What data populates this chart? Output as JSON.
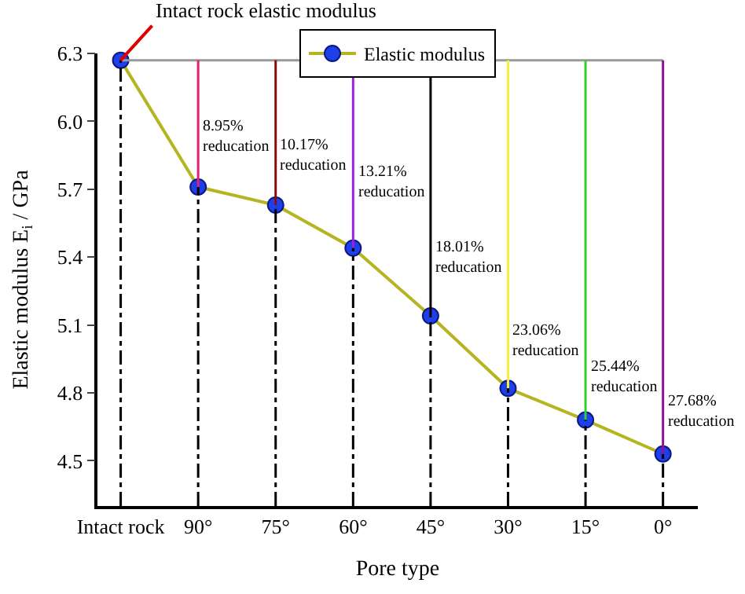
{
  "chart_data": {
    "type": "line",
    "xlabel": "Pore type",
    "ylabel": "Elastic modulus E$_{i}$ / GPa",
    "categories": [
      "Intact rock",
      "90°",
      "75°",
      "60°",
      "45°",
      "30°",
      "15°",
      "0°"
    ],
    "series": [
      {
        "name": "Elastic modulus",
        "color": "#b5b522",
        "colors": [
          "#1f3fe8",
          "#1f3fe8",
          "#1f3fe8",
          "#1f3fe8",
          "#1f3fe8",
          "#1f3fe8",
          "#1f3fe8",
          "#1f3fe8"
        ],
        "values": [
          6.27,
          5.71,
          5.63,
          5.44,
          5.14,
          4.82,
          4.68,
          4.53
        ]
      }
    ],
    "ylim": [
      4.3,
      6.3
    ],
    "yticks": [
      4.5,
      4.8,
      5.1,
      5.4,
      5.7,
      {
        "value": 6,
        "label": "6.0"
      },
      6.3
    ],
    "marker": "circle",
    "line_style": "solid",
    "legend": "top",
    "ref_lines": [
      {
        "axis": "y",
        "value": 6.27,
        "color": "#999999"
      },
      {
        "axis": "x",
        "value": "90°",
        "color": "#e0207a",
        "line_style": "solid"
      },
      {
        "axis": "x",
        "value": "75°",
        "color": "#8b0a0a",
        "line_style": "solid"
      },
      {
        "axis": "x",
        "value": "60°",
        "color": "#a020e0",
        "line_style": "solid"
      },
      {
        "axis": "x",
        "value": "45°",
        "color": "#000000",
        "line_style": "solid"
      },
      {
        "axis": "x",
        "value": "30°",
        "color": "#f5f040",
        "line_style": "solid"
      },
      {
        "axis": "x",
        "value": "15°",
        "color": "#30d030",
        "line_style": "solid"
      },
      {
        "axis": "x",
        "value": "0°",
        "color": "#9010a0",
        "line_style": "solid"
      },
      {
        "axis": "x",
        "value": "Intact rock",
        "color": "#000000",
        "line_style": "dashdot"
      },
      {
        "axis": "x",
        "value": "90°",
        "color": "#000000",
        "line_style": "dashdot"
      },
      {
        "axis": "x",
        "value": "75°",
        "color": "#000000",
        "line_style": "dashdot"
      },
      {
        "axis": "x",
        "value": "60°",
        "color": "#000000",
        "line_style": "dashdot"
      },
      {
        "axis": "x",
        "value": "45°",
        "color": "#000000",
        "line_style": "dashdot"
      },
      {
        "axis": "x",
        "value": "30°",
        "color": "#000000",
        "line_style": "dashdot"
      },
      {
        "axis": "x",
        "value": "15°",
        "color": "#000000",
        "line_style": "dashdot"
      },
      {
        "axis": "x",
        "value": "0°",
        "color": "#000000",
        "line_style": "dashdot"
      }
    ],
    "annotations": [
      {
        "text": "Intact rock elastic modulus",
        "x": "Intact rock",
        "y": 6.27
      },
      {
        "text": "8.95%\nreducation",
        "x": "90°",
        "y": 5.93
      },
      {
        "text": "10.17%\nreducation",
        "x": "75°",
        "y": 5.85
      },
      {
        "text": "13.21%\nreducation",
        "x": "60°",
        "y": 5.73
      },
      {
        "text": "18.01%\nreducation",
        "x": "45°",
        "y": 5.4
      },
      {
        "text": "23.06%\nreducation",
        "x": "30°",
        "y": 5.03
      },
      {
        "text": "25.44%\nreducation",
        "x": "15°",
        "y": 4.87
      },
      {
        "text": "27.68%\nreducation",
        "x": "0°",
        "y": 4.72
      }
    ]
  }
}
